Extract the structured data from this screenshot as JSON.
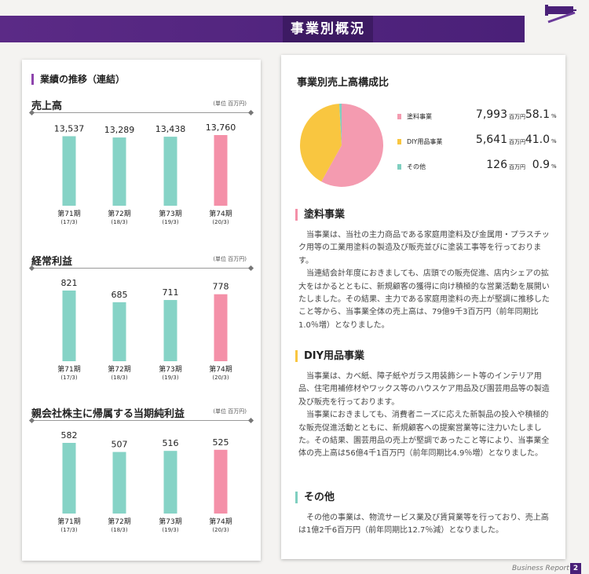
{
  "header": {
    "title": "事業別概況"
  },
  "left": {
    "section_title": "業績の推移（連結）",
    "categories": [
      {
        "period": "第71期",
        "fy": "(17/3)"
      },
      {
        "period": "第72期",
        "fy": "(18/3)"
      },
      {
        "period": "第73期",
        "fy": "(19/3)"
      },
      {
        "period": "第74期",
        "fy": "(20/3)"
      }
    ]
  },
  "chart_data": [
    {
      "type": "bar",
      "title": "売上高",
      "unit": "(単位 百万円)",
      "categories": [
        "第71期",
        "第72期",
        "第73期",
        "第74期"
      ],
      "values": [
        13537,
        13289,
        13438,
        13760
      ],
      "value_labels": [
        "13,537",
        "13,289",
        "13,438",
        "13,760"
      ],
      "highlight_index": 3,
      "colors": {
        "base": "#86d3c6",
        "highlight": "#f490a8"
      }
    },
    {
      "type": "bar",
      "title": "経常利益",
      "unit": "(単位 百万円)",
      "categories": [
        "第71期",
        "第72期",
        "第73期",
        "第74期"
      ],
      "values": [
        821,
        685,
        711,
        778
      ],
      "value_labels": [
        "821",
        "685",
        "711",
        "778"
      ],
      "highlight_index": 3,
      "colors": {
        "base": "#86d3c6",
        "highlight": "#f490a8"
      }
    },
    {
      "type": "bar",
      "title": "親会社株主に帰属する当期純利益",
      "unit": "(単位 百万円)",
      "categories": [
        "第71期",
        "第72期",
        "第73期",
        "第74期"
      ],
      "values": [
        582,
        507,
        516,
        525
      ],
      "value_labels": [
        "582",
        "507",
        "516",
        "525"
      ],
      "highlight_index": 3,
      "colors": {
        "base": "#86d3c6",
        "highlight": "#f490a8"
      }
    },
    {
      "type": "pie",
      "title": "事業別売上高構成比",
      "slices": [
        {
          "name": "塗料事業",
          "value": 7993,
          "value_label": "7,993",
          "unit": "百万円",
          "percent": 58.1,
          "percent_label": "58.1",
          "color": "#f49bb0"
        },
        {
          "name": "DIY用品事業",
          "value": 5641,
          "value_label": "5,641",
          "unit": "百万円",
          "percent": 41.0,
          "percent_label": "41.0",
          "color": "#f9c640"
        },
        {
          "name": "その他",
          "value": 126,
          "value_label": "126",
          "unit": "百万円",
          "percent": 0.9,
          "percent_label": "0.9",
          "color": "#7fcfc0"
        }
      ],
      "percent_sign": "%"
    }
  ],
  "segments": [
    {
      "title": "塗料事業",
      "color": "#f490a8",
      "paragraphs": [
        "当事業は、当社の主力商品である家庭用塗料及び金属用・プラスチック用等の工業用塗料の製造及び販売並びに塗装工事等を行っております。",
        "当連結会計年度におきましても、店頭での販売促進、店内シェアの拡大をはかるとともに、新規顧客の獲得に向け積極的な営業活動を展開いたしました。その結果、主力である家庭用塗料の売上が堅調に推移したこと等から、当事業全体の売上高は、79億9千3百万円（前年同期比1.0％増）となりました。"
      ]
    },
    {
      "title": "DIY用品事業",
      "color": "#f9c640",
      "paragraphs": [
        "当事業は、カベ紙、障子紙やガラス用装飾シート等のインテリア用品、住宅用補修材やワックス等のハウスケア用品及び園芸用品等の製造及び販売を行っております。",
        "当事業におきましても、消費者ニーズに応えた新製品の投入や積極的な販売促進活動とともに、新規顧客への提案営業等に注力いたしました。その結果、園芸用品の売上が堅調であったこと等により、当事業全体の売上高は56億4千1百万円（前年同期比4.9％増）となりました。"
      ]
    },
    {
      "title": "その他",
      "color": "#7fcfc0",
      "paragraphs": [
        "その他の事業は、物流サービス業及び賃貸業等を行っており、売上高は1億2千6百万円（前年同期比12.7％減）となりました。"
      ]
    }
  ],
  "footer": {
    "text": "Business Report",
    "page": "2"
  }
}
